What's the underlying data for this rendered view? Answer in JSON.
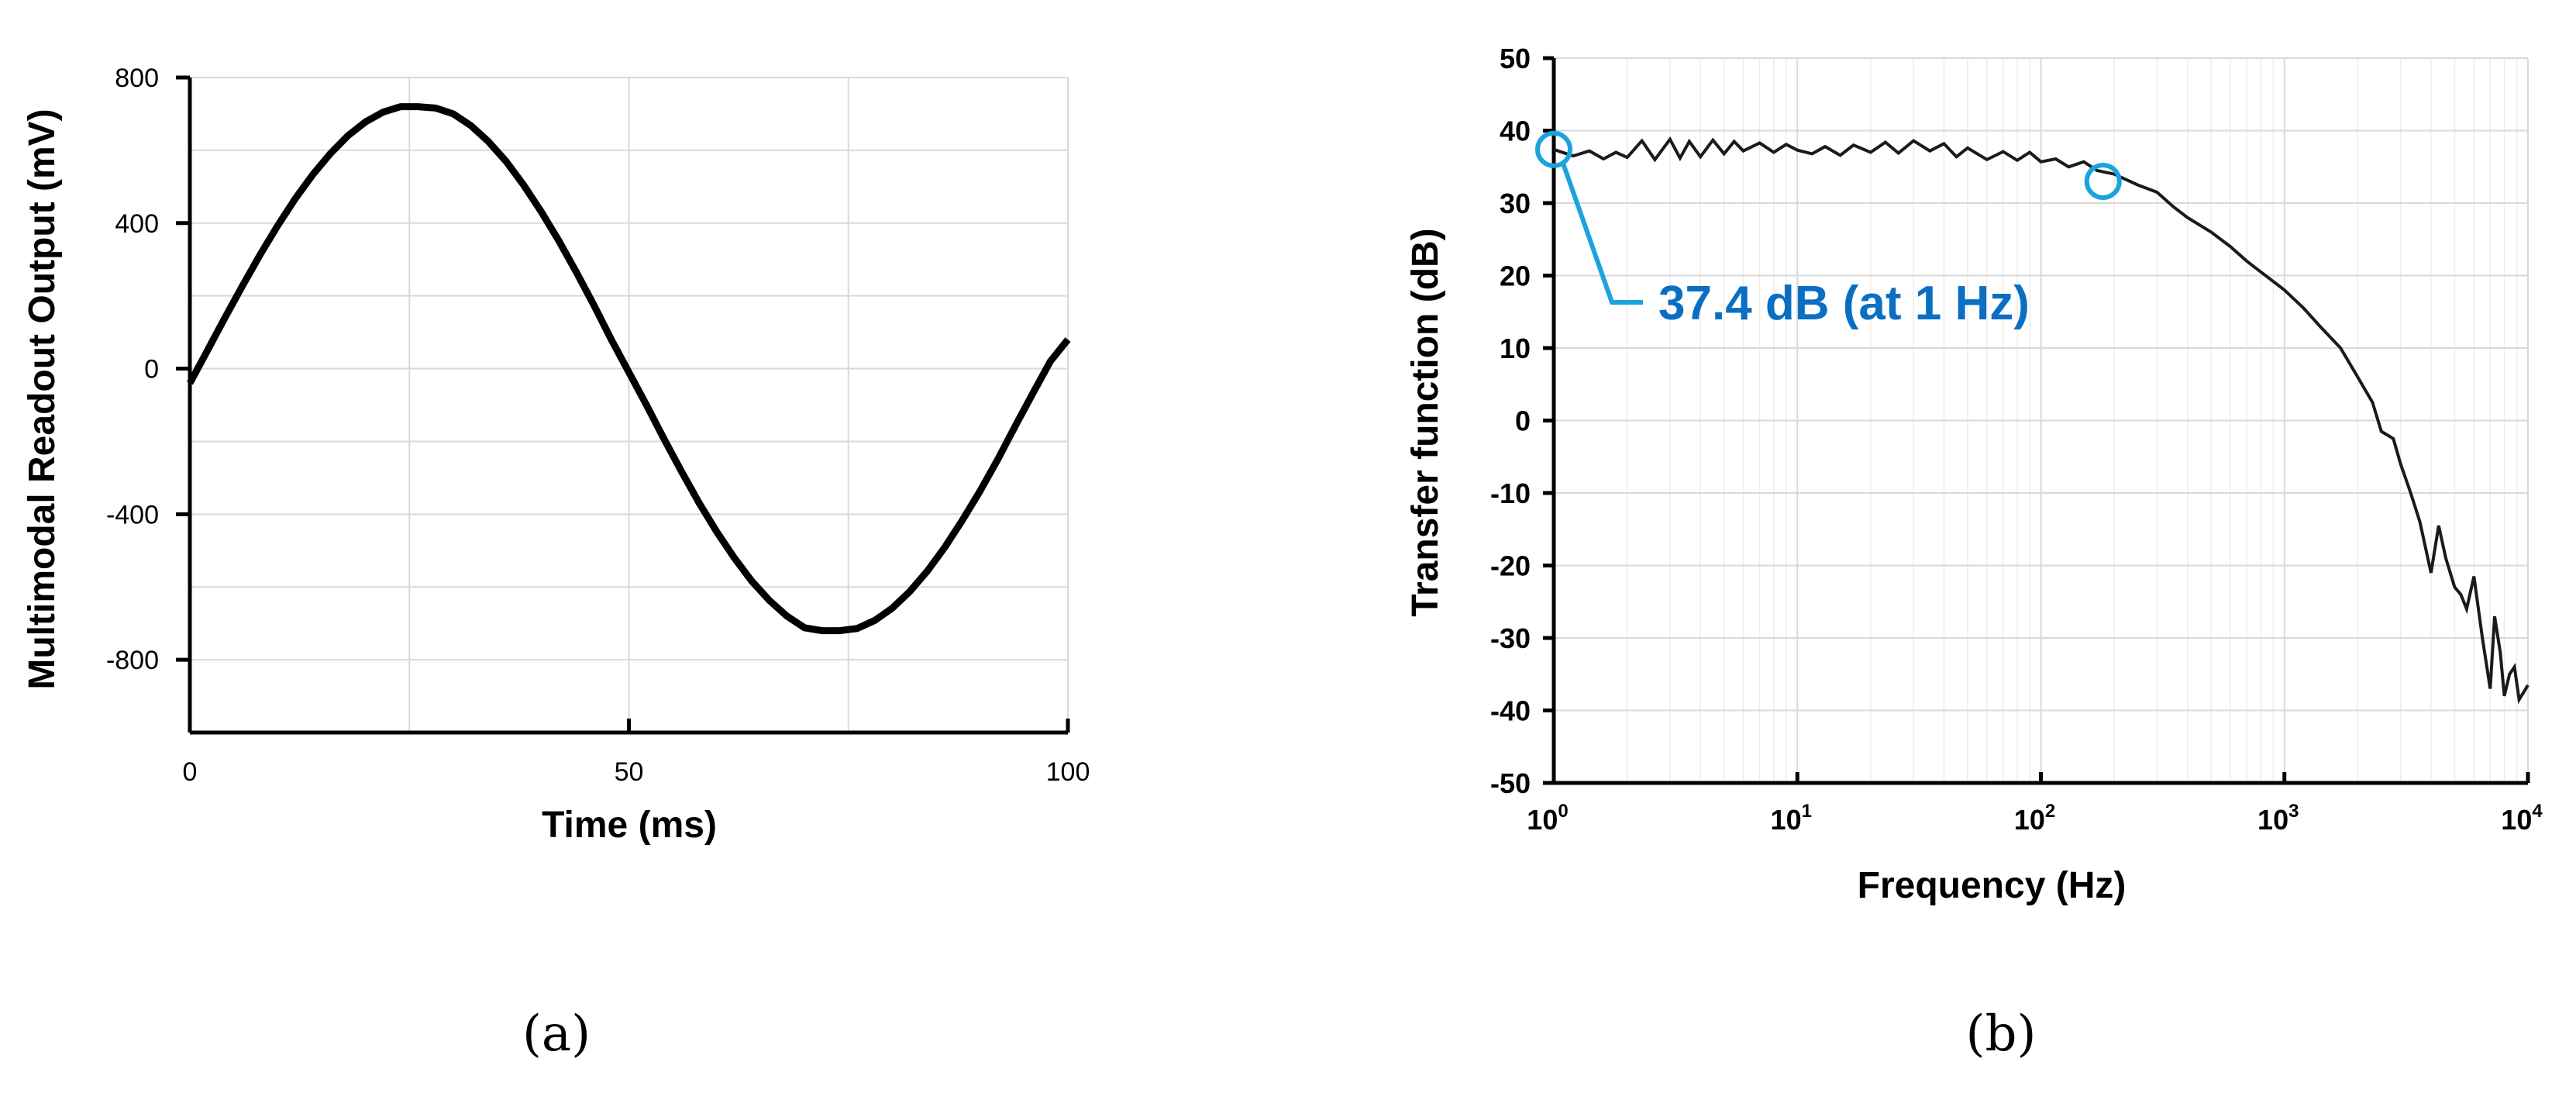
{
  "chart_data": [
    {
      "panel": "(a)",
      "type": "line",
      "xlabel": "Time (ms)",
      "ylabel": "Multimodal Readout Output (mV)",
      "xlim": [
        0,
        100
      ],
      "ylim": [
        -1000,
        800
      ],
      "x_ticks": [
        0,
        50,
        100
      ],
      "y_ticks": [
        800,
        400,
        0,
        -400,
        -800
      ],
      "grid": true,
      "series": [
        {
          "x": [
            0,
            2,
            4,
            6,
            8,
            10,
            12,
            14,
            16,
            18,
            20,
            22,
            24,
            26,
            28,
            30,
            32,
            34,
            36,
            38,
            40,
            42,
            44,
            46,
            48,
            50,
            52,
            54,
            56,
            58,
            60,
            62,
            64,
            66,
            68,
            70,
            72,
            74,
            76,
            78,
            80,
            82,
            84,
            86,
            88,
            90,
            92,
            94,
            96,
            98,
            100
          ],
          "values": [
            -40,
            50,
            140,
            228,
            313,
            393,
            467,
            533,
            591,
            640,
            678,
            705,
            720,
            720,
            716,
            700,
            668,
            624,
            570,
            505,
            432,
            352,
            266,
            175,
            80,
            -10,
            -100,
            -193,
            -283,
            -369,
            -448,
            -520,
            -584,
            -637,
            -680,
            -712,
            -720,
            -720,
            -714,
            -692,
            -658,
            -612,
            -556,
            -490,
            -416,
            -336,
            -250,
            -158,
            -68,
            20,
            80
          ]
        }
      ]
    },
    {
      "panel": "(b)",
      "type": "line",
      "xlabel": "Frequency (Hz)",
      "ylabel": "Transfer function (dB)",
      "x_scale": "log",
      "xlim": [
        1,
        10000
      ],
      "ylim": [
        -50,
        50
      ],
      "x_ticks": [
        {
          "base": "10",
          "exp": "0"
        },
        {
          "base": "10",
          "exp": "1"
        },
        {
          "base": "10",
          "exp": "2"
        },
        {
          "base": "10",
          "exp": "3"
        },
        {
          "base": "10",
          "exp": "4"
        }
      ],
      "y_ticks": [
        50,
        40,
        30,
        20,
        10,
        0,
        -10,
        -20,
        -30,
        -40,
        -50
      ],
      "grid": true,
      "annotation": {
        "text": "37.4 dB (at 1 Hz)",
        "color": "#1aa3dd",
        "text_color": "#0a6fc2",
        "markers": [
          {
            "x": 1,
            "y": 37.4
          },
          {
            "x": 180,
            "y": 33
          }
        ]
      },
      "series": [
        {
          "x": [
            1,
            1.2,
            1.4,
            1.6,
            1.8,
            2,
            2.3,
            2.6,
            3,
            3.3,
            3.6,
            4,
            4.5,
            5,
            5.5,
            6,
            7,
            8,
            9,
            10,
            11.5,
            13,
            15,
            17,
            20,
            23,
            26,
            30,
            35,
            40,
            45,
            50,
            60,
            70,
            80,
            90,
            100,
            115,
            130,
            150,
            170,
            200,
            250,
            300,
            350,
            400,
            500,
            600,
            700,
            800,
            1000,
            1200,
            1400,
            1700,
            2000,
            2300,
            2500,
            2800,
            3000,
            3300,
            3600,
            4000,
            4300,
            4600,
            5000,
            5300,
            5600,
            6000,
            6500,
            7000,
            7300,
            7700,
            8000,
            8400,
            8800,
            9200,
            9600,
            10000
          ],
          "values": [
            37.4,
            36.5,
            37.2,
            36.1,
            37.0,
            36.3,
            38.6,
            36.0,
            38.8,
            36.2,
            38.5,
            36.4,
            38.7,
            36.8,
            38.5,
            37.2,
            38.3,
            37.0,
            38.1,
            37.3,
            36.8,
            37.8,
            36.6,
            38.0,
            37.0,
            38.4,
            36.9,
            38.6,
            37.2,
            38.2,
            36.4,
            37.6,
            36.0,
            37.1,
            35.9,
            37.0,
            35.7,
            36.1,
            35.0,
            35.7,
            34.5,
            34.0,
            32.5,
            31.5,
            29.5,
            28.0,
            26.0,
            24.0,
            22.0,
            20.5,
            18.0,
            15.5,
            13.0,
            10.0,
            6.0,
            2.5,
            -1.5,
            -2.5,
            -6.0,
            -10.0,
            -14.0,
            -21.0,
            -14.5,
            -19.0,
            -23.0,
            -24.0,
            -26.0,
            -21.5,
            -30.0,
            -37.0,
            -27.0,
            -32.0,
            -38.0,
            -35.0,
            -34.0,
            -38.5,
            -37.5,
            -36.5
          ]
        }
      ]
    }
  ]
}
